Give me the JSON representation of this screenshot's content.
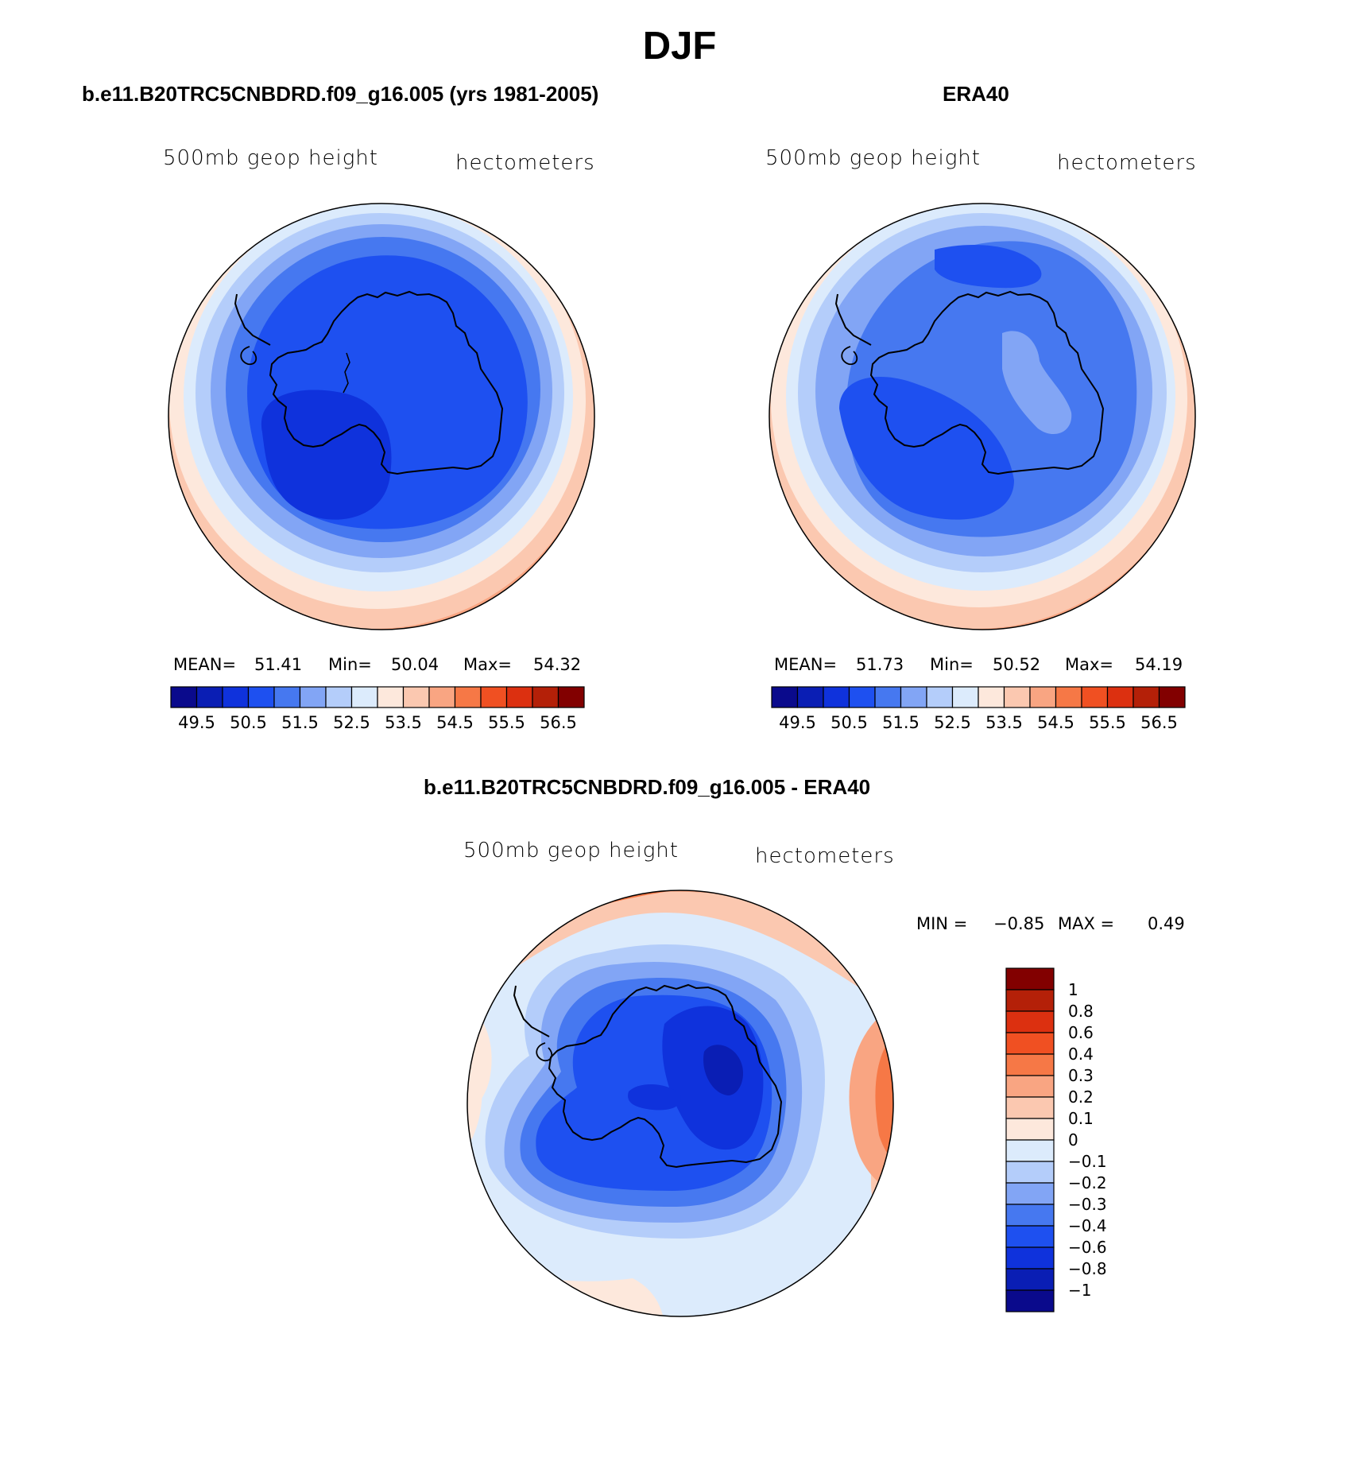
{
  "figure_title": "DJF",
  "panels": [
    {
      "title": "b.e11.B20TRC5CNBDRD.f09_g16.005 (yrs 1981-2005)",
      "variable": "500mb geop height",
      "units": "hectometers",
      "stats": {
        "mean_label": "MEAN=",
        "mean": "51.41",
        "min_label": "Min=",
        "min": "50.04",
        "max_label": "Max=",
        "max": "54.32"
      }
    },
    {
      "title": "ERA40",
      "variable": "500mb geop height",
      "units": "hectometers",
      "stats": {
        "mean_label": "MEAN=",
        "mean": "51.73",
        "min_label": "Min=",
        "min": "50.52",
        "max_label": "Max=",
        "max": "54.19"
      }
    },
    {
      "title": "b.e11.B20TRC5CNBDRD.f09_g16.005 - ERA40",
      "variable": "500mb geop height",
      "units": "hectometers",
      "stats": {
        "min_label": "MIN =",
        "min": "−0.85",
        "max_label": "MAX =",
        "max": "0.49"
      }
    }
  ],
  "colorbar_horizontal": {
    "labels": [
      "49.5",
      "50.5",
      "51.5",
      "52.5",
      "53.5",
      "54.5",
      "55.5",
      "56.5"
    ],
    "colors": [
      "#0a0a8c",
      "#0a1eb4",
      "#0f32dc",
      "#1e50f0",
      "#4678f0",
      "#82a5f5",
      "#b4cdfa",
      "#dcebfc",
      "#fde8dc",
      "#fbc8b0",
      "#f9a582",
      "#f67846",
      "#f05022",
      "#dc3010",
      "#b42008",
      "#820000"
    ]
  },
  "colorbar_vertical": {
    "labels": [
      "1",
      "0.8",
      "0.6",
      "0.4",
      "0.3",
      "0.2",
      "0.1",
      "0",
      "−0.1",
      "−0.2",
      "−0.3",
      "−0.4",
      "−0.6",
      "−0.8",
      "−1"
    ],
    "colors": [
      "#820000",
      "#b42008",
      "#dc3010",
      "#f05022",
      "#f67846",
      "#f9a582",
      "#fbc8b0",
      "#fde8dc",
      "#dcebfc",
      "#b4cdfa",
      "#82a5f5",
      "#4678f0",
      "#1e50f0",
      "#0f32dc",
      "#0a1eb4",
      "#0a0a8c"
    ]
  },
  "map_colors": {
    "ring": [
      "#fbc8b0",
      "#fde8dc",
      "#dcebfc",
      "#b4cdfa",
      "#82a5f5",
      "#4678f0",
      "#1e50f0",
      "#0f32dc"
    ],
    "diff": [
      "#f67846",
      "#f9a582",
      "#fbc8b0",
      "#fde8dc",
      "#dcebfc",
      "#b4cdfa",
      "#82a5f5",
      "#4678f0",
      "#1e50f0",
      "#0f32dc"
    ]
  }
}
